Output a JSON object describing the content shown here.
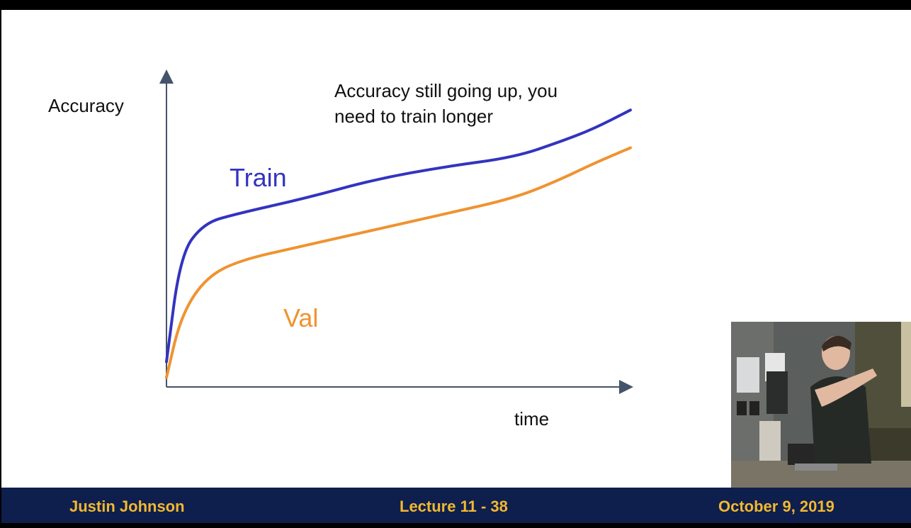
{
  "slide": {
    "annotation_line1": "Accuracy still going up, you",
    "annotation_line2": "need to train longer"
  },
  "chart_data": {
    "type": "line",
    "ylabel": "Accuracy",
    "xlabel": "time",
    "grid": false,
    "axes": "arrows, no ticks",
    "series": [
      {
        "name": "Train",
        "color": "#3333c0",
        "x": [
          0,
          0.03,
          0.08,
          0.15,
          0.3,
          0.45,
          0.6,
          0.75,
          0.85,
          0.92,
          1.0
        ],
        "y": [
          0.08,
          0.42,
          0.52,
          0.55,
          0.6,
          0.66,
          0.7,
          0.73,
          0.78,
          0.82,
          0.88
        ]
      },
      {
        "name": "Val",
        "color": "#ef9330",
        "x": [
          0,
          0.03,
          0.08,
          0.15,
          0.3,
          0.45,
          0.6,
          0.75,
          0.85,
          0.92,
          1.0
        ],
        "y": [
          0.03,
          0.22,
          0.34,
          0.4,
          0.45,
          0.5,
          0.55,
          0.6,
          0.66,
          0.71,
          0.76
        ]
      }
    ]
  },
  "footer": {
    "author": "Justin Johnson",
    "lecture": "Lecture 11 - 38",
    "date": "October 9, 2019"
  }
}
